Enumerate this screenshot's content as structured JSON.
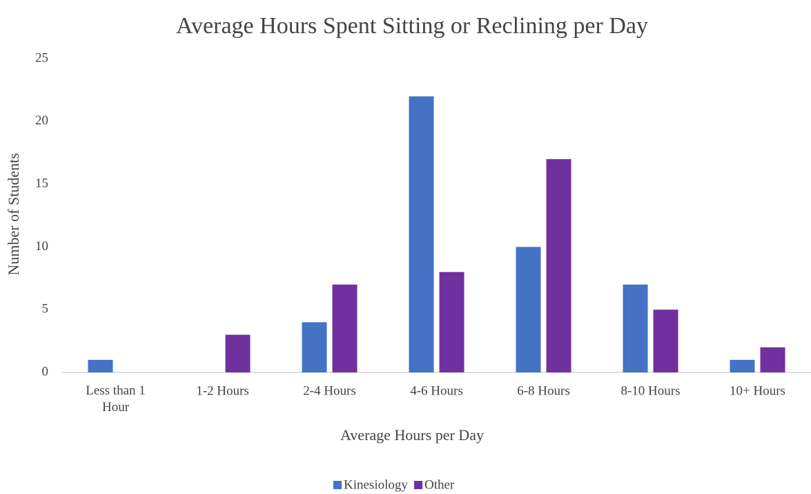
{
  "chart_data": {
    "type": "bar",
    "title": "Average Hours Spent Sitting or Reclining per Day",
    "x_label": "Average Hours per Day",
    "y_label": "Number of Students",
    "categories": [
      "Less than 1 Hour",
      "1-2 Hours",
      "2-4 Hours",
      "4-6 Hours",
      "6-8 Hours",
      "8-10 Hours",
      "10+ Hours"
    ],
    "series": [
      {
        "name": "Kinesiology",
        "color": "#4472c4",
        "values": [
          1,
          0,
          4,
          22,
          10,
          7,
          1
        ]
      },
      {
        "name": "Other",
        "color": "#7030a0",
        "values": [
          0,
          3,
          7,
          8,
          17,
          5,
          2
        ]
      }
    ],
    "ylim": [
      0,
      25
    ],
    "yticks": [
      0,
      5,
      10,
      15,
      20,
      25
    ],
    "grid": false,
    "legend": "bottom"
  }
}
